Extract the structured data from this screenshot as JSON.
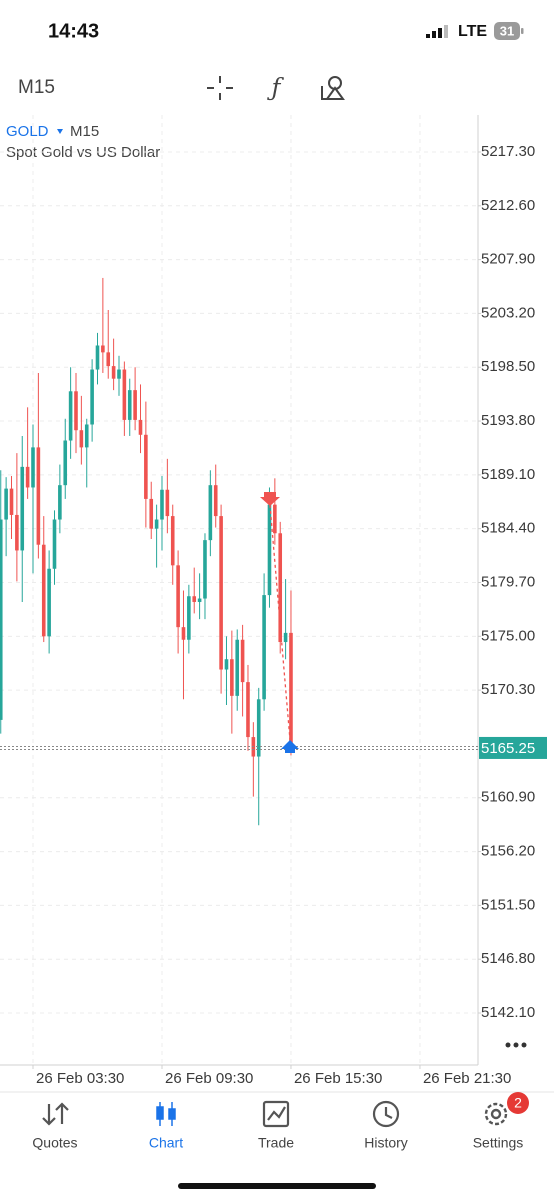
{
  "status_bar": {
    "time": "14:43",
    "network": "LTE",
    "battery": "31"
  },
  "toolbar": {
    "timeframe": "M15"
  },
  "chart_data": {
    "type": "candlestick",
    "symbol": "GOLD",
    "timeframe": "M15",
    "subtitle": "Spot Gold vs US Dollar",
    "x": [
      1.75,
      2,
      2.25,
      2.5,
      2.75,
      3,
      3.25,
      3.5,
      3.75,
      4,
      4.25,
      4.5,
      4.75,
      5,
      5.25,
      5.5,
      5.75,
      6,
      6.25,
      6.5,
      6.75,
      7,
      7.25,
      7.5,
      7.75,
      8,
      8.25,
      8.5,
      8.75,
      9,
      9.25,
      9.5,
      9.75,
      10,
      10.25,
      10.5,
      10.75,
      11,
      11.25,
      11.5,
      11.75,
      12,
      12.25,
      12.5,
      12.75,
      13,
      13.25,
      13.5,
      13.75,
      14,
      14.25,
      14.5,
      14.75,
      15,
      15.25,
      15.5
    ],
    "open": [
      5165.1,
      5167.7,
      5185.2,
      5187.9,
      5185.6,
      5182.5,
      5189.8,
      5188.0,
      5191.5,
      5183.0,
      5175.0,
      5180.9,
      5185.2,
      5188.2,
      5192.1,
      5196.4,
      5193.0,
      5191.5,
      5193.5,
      5198.3,
      5200.4,
      5199.8,
      5198.6,
      5197.5,
      5198.3,
      5193.9,
      5196.5,
      5193.9,
      5192.6,
      5187.0,
      5184.4,
      5185.2,
      5187.8,
      5185.5,
      5181.2,
      5175.8,
      5174.7,
      5178.5,
      5178.0,
      5178.3,
      5183.4,
      5188.2,
      5185.5,
      5172.1,
      5173.0,
      5169.8,
      5174.7,
      5171.0,
      5166.2,
      5164.5,
      5169.5,
      5178.6,
      5186.5,
      5184.0,
      5174.5,
      5175.3
    ],
    "high": [
      5170.0,
      5189.5,
      5188.9,
      5189.0,
      5191.0,
      5192.5,
      5195.0,
      5193.5,
      5198.0,
      5185.5,
      5182.5,
      5186.0,
      5190.0,
      5194.0,
      5198.5,
      5198.0,
      5196.0,
      5194.0,
      5199.2,
      5201.5,
      5206.3,
      5203.5,
      5201.0,
      5199.5,
      5199.0,
      5197.5,
      5198.5,
      5197.0,
      5195.5,
      5188.5,
      5186.5,
      5189.0,
      5190.5,
      5186.5,
      5182.5,
      5179.0,
      5179.5,
      5181.0,
      5180.5,
      5184.0,
      5189.5,
      5190.0,
      5186.5,
      5175.0,
      5175.5,
      5175.6,
      5176.0,
      5172.5,
      5167.5,
      5170.5,
      5180.5,
      5188.0,
      5188.8,
      5185.0,
      5180.0,
      5179.0
    ],
    "low": [
      5155.6,
      5166.5,
      5182.0,
      5183.5,
      5179.8,
      5178.0,
      5187.0,
      5180.5,
      5181.8,
      5174.5,
      5173.5,
      5179.5,
      5184.0,
      5187.0,
      5190.5,
      5191.0,
      5190.0,
      5188.0,
      5192.0,
      5197.0,
      5198.0,
      5197.5,
      5196.5,
      5196.0,
      5192.5,
      5192.5,
      5193.0,
      5191.0,
      5184.5,
      5183.5,
      5181.0,
      5182.5,
      5184.0,
      5179.5,
      5173.5,
      5169.5,
      5173.5,
      5177.0,
      5176.5,
      5176.5,
      5182.0,
      5184.5,
      5170.0,
      5169.0,
      5166.5,
      5168.5,
      5168.0,
      5165.0,
      5161.0,
      5158.5,
      5168.5,
      5177.5,
      5183.0,
      5173.5,
      5173.0,
      5164.6
    ],
    "close": [
      5167.7,
      5185.2,
      5187.9,
      5185.6,
      5182.5,
      5189.8,
      5188.0,
      5191.5,
      5183.0,
      5175.0,
      5180.9,
      5185.2,
      5188.2,
      5192.1,
      5196.4,
      5193.0,
      5191.5,
      5193.5,
      5198.3,
      5200.4,
      5199.8,
      5198.6,
      5197.5,
      5198.3,
      5193.9,
      5196.5,
      5193.9,
      5192.6,
      5187.0,
      5184.4,
      5185.2,
      5187.8,
      5185.5,
      5181.2,
      5175.8,
      5174.7,
      5178.5,
      5178.0,
      5178.3,
      5183.4,
      5188.2,
      5185.5,
      5172.1,
      5173.0,
      5169.8,
      5174.7,
      5171.0,
      5166.2,
      5164.5,
      5169.5,
      5178.6,
      5186.5,
      5184.0,
      5174.5,
      5175.3,
      5165.25
    ],
    "up_color": "#26a69a",
    "down_color": "#ef5350",
    "current_price": 5165.25,
    "current_price_color": "#26a69a",
    "xlim": [
      1.965,
      24.2
    ],
    "xticks": [
      {
        "value": 3.5,
        "label": "26 Feb 03:30"
      },
      {
        "value": 9.5,
        "label": "26 Feb 09:30"
      },
      {
        "value": 15.5,
        "label": "26 Feb 15:30"
      },
      {
        "value": 21.5,
        "label": "26 Feb 21:30"
      }
    ],
    "ylim": [
      5137.56,
      5220.53
    ],
    "yticks": [
      {
        "value": 5217.3,
        "label": "5217.30"
      },
      {
        "value": 5212.6,
        "label": "5212.60"
      },
      {
        "value": 5207.9,
        "label": "5207.90"
      },
      {
        "value": 5203.2,
        "label": "5203.20"
      },
      {
        "value": 5198.5,
        "label": "5198.50"
      },
      {
        "value": 5193.8,
        "label": "5193.80"
      },
      {
        "value": 5189.1,
        "label": "5189.10"
      },
      {
        "value": 5184.4,
        "label": "5184.40"
      },
      {
        "value": 5179.7,
        "label": "5179.70"
      },
      {
        "value": 5175,
        "label": "5175.00"
      },
      {
        "value": 5170.3,
        "label": "5170.30"
      },
      {
        "value": 5160.9,
        "label": "5160.90"
      },
      {
        "value": 5156.2,
        "label": "5156.20"
      },
      {
        "value": 5151.5,
        "label": "5151.50"
      },
      {
        "value": 5146.8,
        "label": "5146.80"
      },
      {
        "value": 5142.1,
        "label": "5142.10"
      }
    ],
    "grid": true
  },
  "nav": {
    "items": [
      "Quotes",
      "Chart",
      "Trade",
      "History",
      "Settings"
    ],
    "active": 1,
    "settings_badge": 2
  }
}
